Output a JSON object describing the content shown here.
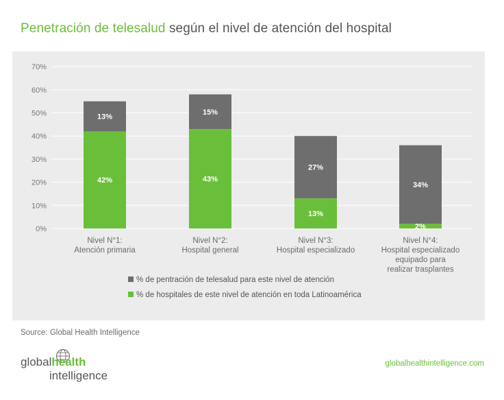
{
  "title": {
    "accent": "Penetración de telesalud",
    "rest": " según el nivel de atención del hospital"
  },
  "source": "Source: Global Health Intelligence",
  "logo": {
    "part1": "global",
    "part2": "health",
    "part3": "intelligence"
  },
  "website": "globalhealthintelligence.com",
  "colors": {
    "green": "#6abf3a",
    "gray": "#6e6e6e",
    "panel": "#ececec"
  },
  "chart_data": {
    "type": "bar",
    "stacked": true,
    "title": "Penetración de telesalud según el nivel de atención del hospital",
    "categories": [
      [
        "Nivel N°1:",
        "Atención primaria"
      ],
      [
        "Nivel N°2:",
        "Hospital general"
      ],
      [
        "Nivel N°3:",
        "Hospital especializado"
      ],
      [
        "Nivel N°4:",
        "Hospital especializado",
        "equipado para",
        "realizar trasplantes"
      ]
    ],
    "series": [
      {
        "name": "% de hospitales de este nivel de atención en toda Latinoamérica",
        "color": "#6abf3a",
        "values": [
          42,
          43,
          13,
          2
        ],
        "labels": [
          "42%",
          "43%",
          "13%",
          "2%"
        ]
      },
      {
        "name": "% de pentración de telesalud para este nivel de atención",
        "color": "#6e6e6e",
        "values": [
          13,
          15,
          27,
          34
        ],
        "labels": [
          "13%",
          "15%",
          "27%",
          "34%"
        ]
      }
    ],
    "legend_order": [
      1,
      0
    ],
    "yticks": [
      "0%",
      "10%",
      "20%",
      "30%",
      "40%",
      "50%",
      "60%",
      "70%"
    ],
    "ylim": [
      0,
      70
    ],
    "grid": true,
    "xlabel": "",
    "ylabel": ""
  }
}
